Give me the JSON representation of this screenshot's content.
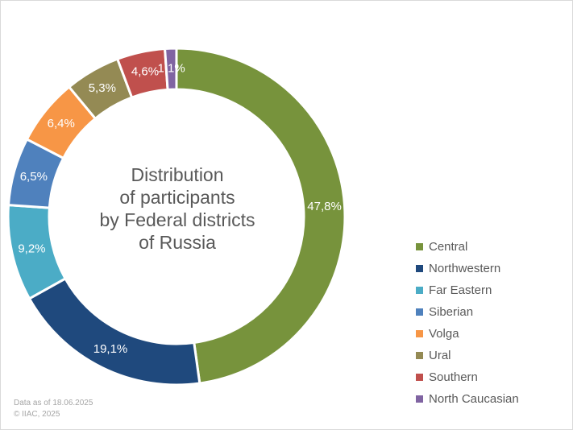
{
  "chart_data": {
    "type": "pie",
    "variant": "donut",
    "title_lines": [
      "Distribution",
      "of participants",
      "by Federal districts",
      "of Russia"
    ],
    "slices": [
      {
        "label": "Central",
        "value": 47.8,
        "value_label": "47,8%",
        "color": "#77933c"
      },
      {
        "label": "Northwestern",
        "value": 19.1,
        "value_label": "19,1%",
        "color": "#1f497d"
      },
      {
        "label": "Far Eastern",
        "value": 9.2,
        "value_label": "9,2%",
        "color": "#4bacc6"
      },
      {
        "label": "Siberian",
        "value": 6.5,
        "value_label": "6,5%",
        "color": "#4f81bd"
      },
      {
        "label": "Volga",
        "value": 6.4,
        "value_label": "6,4%",
        "color": "#f79646"
      },
      {
        "label": "Ural",
        "value": 5.3,
        "value_label": "5,3%",
        "color": "#948a54"
      },
      {
        "label": "Southern",
        "value": 4.6,
        "value_label": "4,6%",
        "color": "#c0504d"
      },
      {
        "label": "North Caucasian",
        "value": 1.1,
        "value_label": "1,1%",
        "color": "#8064a2"
      }
    ],
    "legend_position": "right"
  },
  "footnote": {
    "line1": "Data as of 18.06.2025",
    "line2": "© IIAC, 2025"
  }
}
